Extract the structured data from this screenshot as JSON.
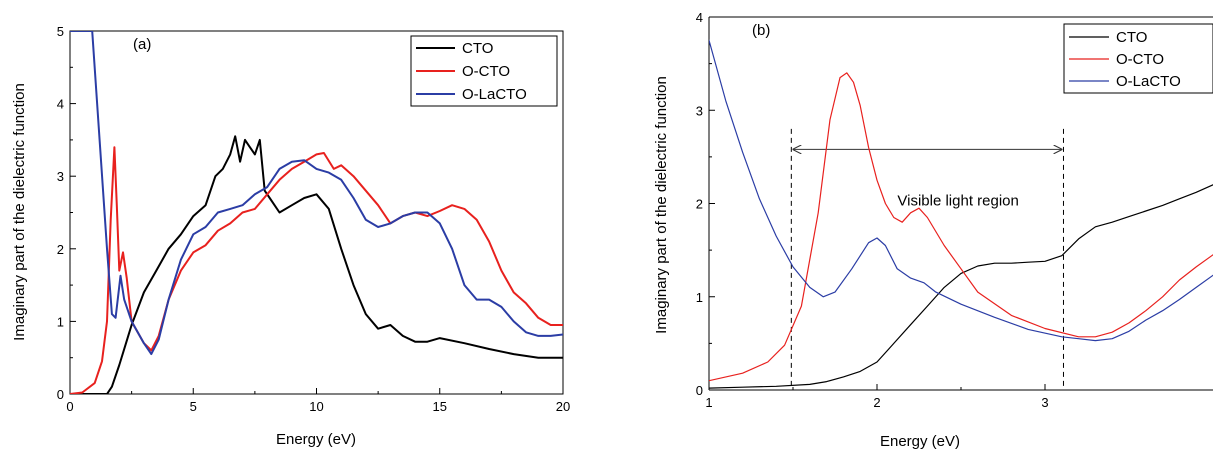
{
  "chart_data": [
    {
      "type": "line",
      "panel_label": "(a)",
      "xlabel": "Energy (eV)",
      "ylabel": "Imaginary part of the dielectric function",
      "xlim": [
        0,
        20
      ],
      "ylim": [
        0,
        5
      ],
      "xticks": [
        0,
        5,
        10,
        15,
        20
      ],
      "yticks": [
        0,
        1,
        2,
        3,
        4,
        5
      ],
      "legend_position": "top-right",
      "grid": false,
      "series": [
        {
          "name": "CTO",
          "color": "#000000",
          "x": [
            0,
            1.5,
            1.7,
            2.0,
            2.5,
            3.0,
            3.5,
            4.0,
            4.5,
            5.0,
            5.5,
            5.9,
            6.2,
            6.5,
            6.7,
            6.9,
            7.1,
            7.3,
            7.5,
            7.7,
            7.9,
            8.1,
            8.5,
            9.0,
            9.5,
            10.0,
            10.5,
            11.0,
            11.5,
            12.0,
            12.5,
            13.0,
            13.5,
            14.0,
            14.5,
            15.0,
            16.0,
            17.0,
            18.0,
            19.0,
            20.0
          ],
          "y": [
            0,
            0,
            0.1,
            0.4,
            0.95,
            1.4,
            1.7,
            2.0,
            2.2,
            2.45,
            2.6,
            3.0,
            3.1,
            3.3,
            3.55,
            3.2,
            3.5,
            3.4,
            3.3,
            3.5,
            2.8,
            2.7,
            2.5,
            2.6,
            2.7,
            2.75,
            2.55,
            2.0,
            1.5,
            1.1,
            0.9,
            0.95,
            0.8,
            0.72,
            0.72,
            0.77,
            0.7,
            0.62,
            0.55,
            0.5,
            0.5
          ]
        },
        {
          "name": "O-CTO",
          "color": "#e8211e",
          "x": [
            0,
            0.5,
            1.0,
            1.3,
            1.5,
            1.65,
            1.8,
            1.9,
            2.0,
            2.15,
            2.3,
            2.5,
            3.0,
            3.3,
            3.6,
            4.0,
            4.5,
            5.0,
            5.5,
            6.0,
            6.5,
            7.0,
            7.5,
            8.0,
            8.5,
            9.0,
            9.5,
            10.0,
            10.3,
            10.7,
            11.0,
            11.5,
            12.0,
            12.5,
            13.0,
            13.5,
            14.0,
            14.5,
            15.0,
            15.5,
            16.0,
            16.5,
            17.0,
            17.5,
            18.0,
            18.5,
            19.0,
            19.5,
            20.0
          ],
          "y": [
            0,
            0.02,
            0.15,
            0.45,
            1.0,
            2.4,
            3.4,
            2.6,
            1.7,
            1.95,
            1.6,
            1.0,
            0.7,
            0.6,
            0.8,
            1.3,
            1.7,
            1.95,
            2.05,
            2.25,
            2.35,
            2.5,
            2.55,
            2.75,
            2.95,
            3.1,
            3.2,
            3.3,
            3.32,
            3.1,
            3.15,
            3.0,
            2.8,
            2.6,
            2.35,
            2.45,
            2.5,
            2.45,
            2.52,
            2.6,
            2.55,
            2.4,
            2.1,
            1.7,
            1.4,
            1.25,
            1.05,
            0.95,
            0.95
          ]
        },
        {
          "name": "O-LaCTO",
          "color": "#2b3da5",
          "x": [
            0,
            0.3,
            0.6,
            0.9,
            1.2,
            1.5,
            1.7,
            1.85,
            2.05,
            2.2,
            2.5,
            3.0,
            3.3,
            3.6,
            4.0,
            4.5,
            5.0,
            5.5,
            6.0,
            6.5,
            7.0,
            7.5,
            8.0,
            8.5,
            9.0,
            9.5,
            10.0,
            10.5,
            11.0,
            11.5,
            12.0,
            12.5,
            13.0,
            13.5,
            14.0,
            14.5,
            15.0,
            15.5,
            16.0,
            16.5,
            17.0,
            17.5,
            18.0,
            18.5,
            19.0,
            19.5,
            20.0
          ],
          "y": [
            5.0,
            5.0,
            5.0,
            5.0,
            3.5,
            2.0,
            1.1,
            1.05,
            1.63,
            1.3,
            1.0,
            0.7,
            0.55,
            0.75,
            1.3,
            1.85,
            2.2,
            2.3,
            2.5,
            2.55,
            2.6,
            2.75,
            2.85,
            3.1,
            3.2,
            3.22,
            3.1,
            3.05,
            2.95,
            2.7,
            2.4,
            2.3,
            2.35,
            2.45,
            2.5,
            2.5,
            2.35,
            2.0,
            1.5,
            1.3,
            1.3,
            1.2,
            1.0,
            0.85,
            0.8,
            0.8,
            0.82
          ]
        }
      ],
      "annotations": []
    },
    {
      "type": "line",
      "panel_label": "(b)",
      "xlabel": "Energy (eV)",
      "ylabel": "Imaginary part of the dielectric function",
      "xlim": [
        1,
        4
      ],
      "ylim": [
        0,
        4
      ],
      "xticks": [
        1,
        2,
        3
      ],
      "yticks": [
        0,
        1,
        2,
        3,
        4
      ],
      "legend_position": "top-right",
      "grid": false,
      "series": [
        {
          "name": "CTO",
          "color": "#000000",
          "x": [
            1.0,
            1.2,
            1.4,
            1.6,
            1.7,
            1.8,
            1.9,
            2.0,
            2.1,
            2.2,
            2.3,
            2.4,
            2.5,
            2.6,
            2.7,
            2.8,
            2.9,
            3.0,
            3.1,
            3.2,
            3.3,
            3.4,
            3.5,
            3.6,
            3.7,
            3.8,
            3.9,
            4.0
          ],
          "y": [
            0.02,
            0.03,
            0.04,
            0.06,
            0.09,
            0.14,
            0.2,
            0.3,
            0.5,
            0.7,
            0.9,
            1.1,
            1.25,
            1.33,
            1.36,
            1.36,
            1.37,
            1.38,
            1.44,
            1.62,
            1.75,
            1.8,
            1.86,
            1.92,
            1.98,
            2.05,
            2.12,
            2.2
          ]
        },
        {
          "name": "O-CTO",
          "color": "#e8211e",
          "x": [
            1.0,
            1.2,
            1.35,
            1.45,
            1.55,
            1.65,
            1.72,
            1.78,
            1.82,
            1.86,
            1.9,
            1.95,
            2.0,
            2.05,
            2.1,
            2.15,
            2.2,
            2.25,
            2.3,
            2.4,
            2.5,
            2.6,
            2.8,
            3.0,
            3.2,
            3.3,
            3.4,
            3.5,
            3.6,
            3.7,
            3.8,
            3.9,
            4.0
          ],
          "y": [
            0.1,
            0.18,
            0.3,
            0.48,
            0.9,
            1.9,
            2.9,
            3.35,
            3.4,
            3.3,
            3.05,
            2.6,
            2.25,
            2.0,
            1.85,
            1.8,
            1.9,
            1.95,
            1.85,
            1.55,
            1.3,
            1.05,
            0.8,
            0.66,
            0.57,
            0.57,
            0.62,
            0.72,
            0.85,
            1.0,
            1.18,
            1.32,
            1.45
          ]
        },
        {
          "name": "O-LaCTO",
          "color": "#2b3da5",
          "x": [
            1.0,
            1.1,
            1.2,
            1.3,
            1.4,
            1.5,
            1.6,
            1.68,
            1.75,
            1.85,
            1.95,
            2.0,
            2.05,
            2.12,
            2.2,
            2.28,
            2.35,
            2.5,
            2.7,
            2.9,
            3.1,
            3.2,
            3.3,
            3.4,
            3.5,
            3.6,
            3.7,
            3.8,
            3.9,
            4.0
          ],
          "y": [
            3.75,
            3.1,
            2.55,
            2.05,
            1.65,
            1.32,
            1.1,
            1.0,
            1.05,
            1.3,
            1.58,
            1.63,
            1.55,
            1.3,
            1.2,
            1.15,
            1.05,
            0.92,
            0.78,
            0.65,
            0.57,
            0.55,
            0.53,
            0.55,
            0.63,
            0.75,
            0.85,
            0.97,
            1.1,
            1.23
          ]
        }
      ],
      "vlines": [
        1.49,
        3.11
      ],
      "annotations": [
        {
          "text": "Visible light region",
          "x": 2.3,
          "y": 2.03
        }
      ],
      "arrow": {
        "x1": 1.49,
        "x2": 3.11,
        "y": 2.58
      }
    }
  ]
}
